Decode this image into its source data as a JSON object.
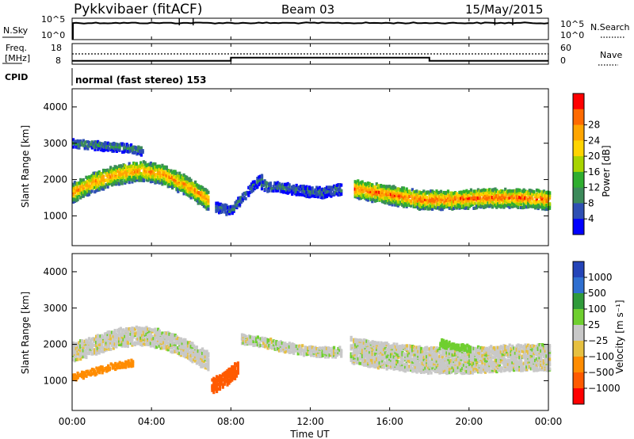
{
  "header": {
    "title": "Pykkvibaer (fitACF)",
    "beam": "Beam 03",
    "date": "15/May/2015"
  },
  "strip_panels": {
    "nsky": {
      "label": "N.Sky",
      "left_ticks": [
        "10^5",
        "10^0"
      ],
      "right_label": "N.Search",
      "right_ticks": [
        "10^5",
        "10^0"
      ]
    },
    "freq": {
      "label_lines": [
        "Freq.",
        "[MHz]"
      ],
      "left_ticks": [
        "18",
        "8"
      ],
      "right_label": "Nave",
      "right_ticks": [
        "60",
        "0"
      ]
    },
    "cpid": {
      "label": "CPID",
      "text": "normal (fast stereo) 153"
    }
  },
  "colors": {
    "power_scale": [
      "#0000ff",
      "#2e4fb3",
      "#3c8a5a",
      "#2fae2f",
      "#a8d400",
      "#ffd400",
      "#ffa500",
      "#ff6a00",
      "#ff0000"
    ],
    "velocity_scale": [
      "#2444b8",
      "#2f6fd0",
      "#2f9a3a",
      "#6fcf2f",
      "#c8c8c8",
      "#e6c040",
      "#ff8c00",
      "#ff5a00",
      "#ff0000"
    ]
  },
  "chart_data": [
    {
      "type": "line",
      "name": "N.Sky / N.Search",
      "y_scale": "log",
      "ylim_left": [
        1,
        100000
      ],
      "ylim_right": [
        1,
        100000
      ],
      "x_range_ut": [
        "00:00",
        "24:00"
      ],
      "note_values": {
        "nsky_level": 100000
      }
    },
    {
      "type": "line",
      "name": "Freq / Nave",
      "ylabel": "Freq. [MHz]",
      "ylim_left": [
        8,
        18
      ],
      "ylim_right": [
        0,
        60
      ],
      "x": [
        "00:00",
        "08:00",
        "08:00",
        "18:00",
        "18:00",
        "24:00"
      ],
      "freq_mhz": [
        9.6,
        9.6,
        11.2,
        11.2,
        9.6,
        9.6
      ],
      "nave": [
        34,
        34
      ]
    },
    {
      "type": "heatmap",
      "title": "",
      "xlabel": "Time UT",
      "ylabel": "Slant Range [km]",
      "ylim": [
        180,
        4500
      ],
      "yticks": [
        1000,
        2000,
        3000,
        4000
      ],
      "xticks": [
        "00:00",
        "04:00",
        "08:00",
        "12:00",
        "16:00",
        "20:00",
        "00:00"
      ],
      "colorbar": {
        "label": "Power [dB]",
        "ticks": [
          "4",
          "8",
          "12",
          "16",
          "20",
          "24",
          "28"
        ],
        "range": [
          0,
          32
        ]
      },
      "echo_bands": [
        {
          "start_hr": 0,
          "end_hr": 6.8,
          "center_km": [
            1700,
            2000,
            2200,
            2300,
            2200,
            1900,
            1500
          ],
          "width_km": 520,
          "power_db": 20
        },
        {
          "start_hr": 0,
          "end_hr": 3.5,
          "center_km": [
            3050,
            3000,
            2950,
            2850
          ],
          "width_km": 220,
          "power_db": 8
        },
        {
          "start_hr": 7.2,
          "end_hr": 9.5,
          "center_km": [
            1300,
            1200,
            1700,
            2100
          ],
          "width_km": 250,
          "power_db": 6
        },
        {
          "start_hr": 9.5,
          "end_hr": 13.5,
          "center_km": [
            1900,
            1850,
            1750,
            1700,
            1800
          ],
          "width_km": 280,
          "power_db": 6
        },
        {
          "start_hr": 14.2,
          "end_hr": 24,
          "center_km": [
            1800,
            1650,
            1500,
            1500,
            1550,
            1550,
            1500
          ],
          "width_km": 500,
          "power_db": 22
        }
      ]
    },
    {
      "type": "heatmap",
      "title": "",
      "xlabel": "Time UT",
      "ylabel": "Slant Range [km]",
      "ylim": [
        180,
        4500
      ],
      "yticks": [
        1000,
        2000,
        3000,
        4000
      ],
      "xticks": [
        "00:00",
        "04:00",
        "08:00",
        "12:00",
        "16:00",
        "20:00",
        "00:00"
      ],
      "colorbar": {
        "label": "Velocity [m s⁻¹]",
        "ticks": [
          "1000",
          "500",
          "100",
          "25",
          "−25",
          "−100",
          "−500",
          "−1000"
        ],
        "range": [
          -1000,
          1000
        ]
      },
      "echo_bands": [
        {
          "start_hr": 0,
          "end_hr": 6.8,
          "center_km": [
            1850,
            2050,
            2250,
            2300,
            2200,
            1950,
            1600
          ],
          "width_km": 500,
          "velocity_ms": 0
        },
        {
          "start_hr": 0,
          "end_hr": 3,
          "center_km": [
            1150,
            1300,
            1450,
            1550
          ],
          "width_km": 160,
          "velocity_ms": -300
        },
        {
          "start_hr": 7,
          "end_hr": 8.3,
          "center_km": [
            900,
            1100,
            1400
          ],
          "width_km": 400,
          "velocity_ms": -600
        },
        {
          "start_hr": 8.5,
          "end_hr": 13.5,
          "center_km": [
            2200,
            2100,
            1950,
            1850,
            1850
          ],
          "width_km": 250,
          "velocity_ms": 0
        },
        {
          "start_hr": 14,
          "end_hr": 24,
          "center_km": [
            1900,
            1750,
            1650,
            1600,
            1650,
            1700,
            1700
          ],
          "width_km": 700,
          "velocity_ms": 0
        },
        {
          "start_hr": 18.5,
          "end_hr": 20,
          "center_km": [
            2100,
            2000,
            1950
          ],
          "width_km": 200,
          "velocity_ms": 150
        }
      ]
    }
  ],
  "x_axis": {
    "label": "Time UT",
    "ticks": [
      "00:00",
      "04:00",
      "08:00",
      "12:00",
      "16:00",
      "20:00",
      "00:00"
    ]
  }
}
